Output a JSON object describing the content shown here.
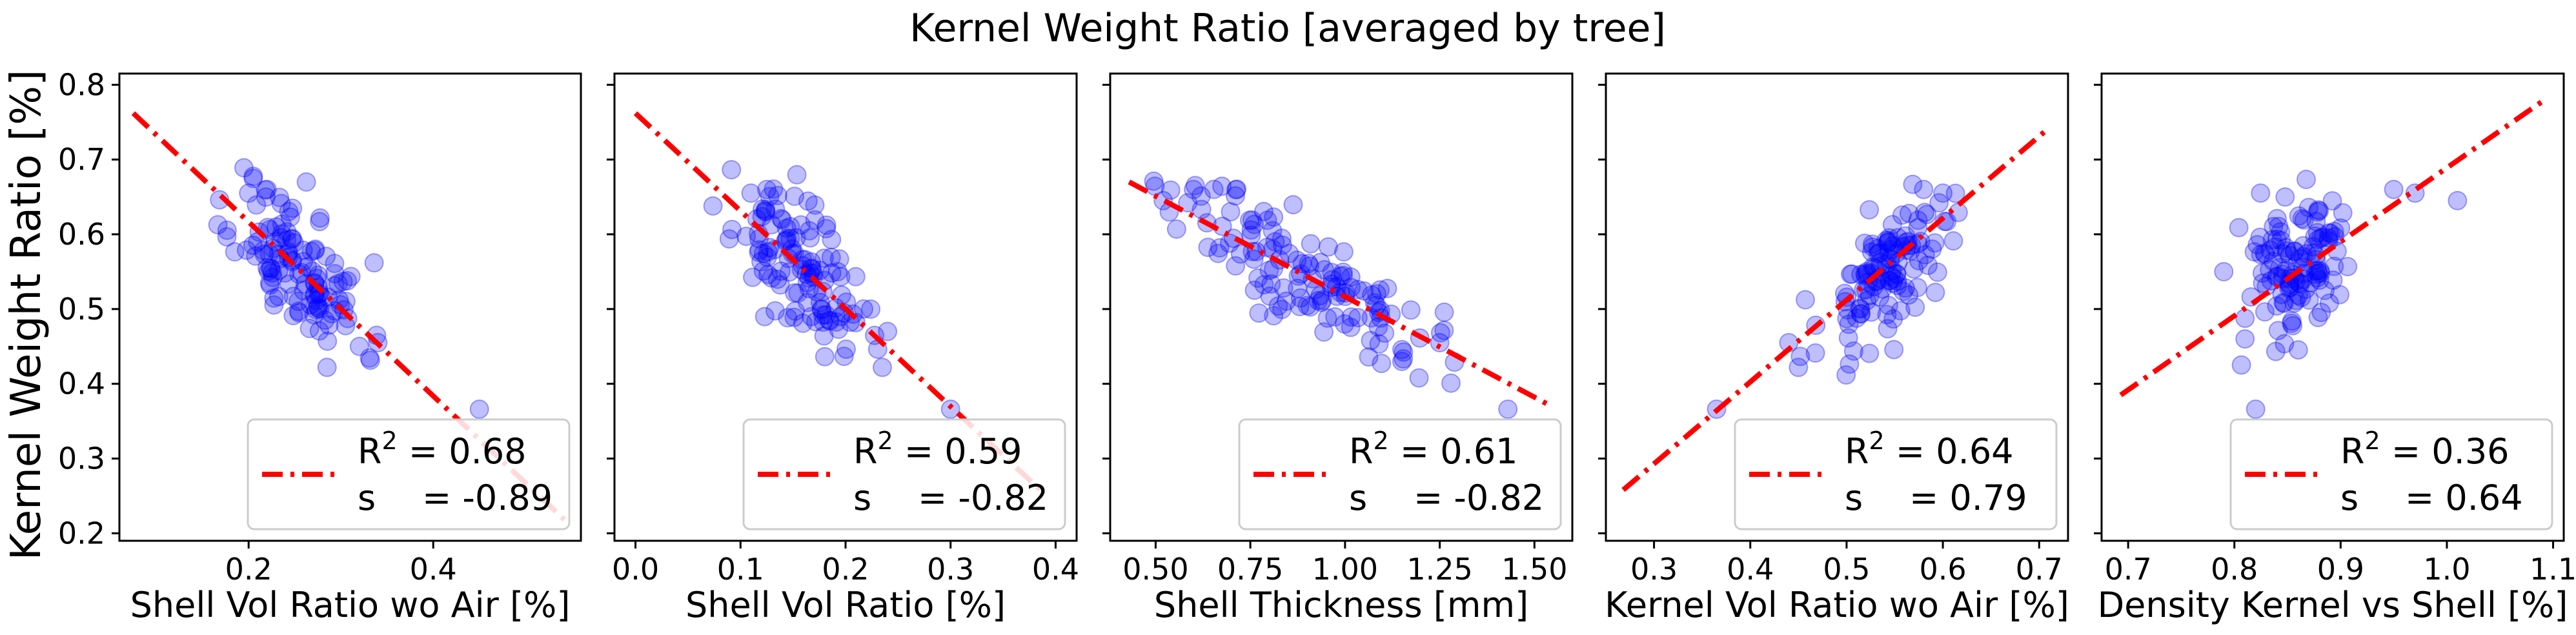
{
  "figure": {
    "title": "Kernel Weight Ratio [averaged by tree]",
    "shared_ylabel": "Kernel Weight Ratio [%]"
  },
  "colors": {
    "points": "#0000ff",
    "fit_line": "#ff0000",
    "axes": "#000000"
  },
  "chart_data": [
    {
      "type": "scatter",
      "xlabel": "Shell Vol Ratio wo Air [%]",
      "ylabel": "Kernel Weight Ratio [%]",
      "xlim": [
        0.06,
        0.56
      ],
      "ylim": [
        0.19,
        0.815
      ],
      "xticks": [
        0.2,
        0.4
      ],
      "xtick_labels": [
        "0.2",
        "0.4"
      ],
      "yticks": [
        0.2,
        0.3,
        0.4,
        0.5,
        0.6,
        0.7,
        0.8
      ],
      "ytick_labels": [
        "0.2",
        "0.3",
        "0.4",
        "0.5",
        "0.6",
        "0.7",
        "0.8"
      ],
      "fit_line": {
        "x": [
          0.075,
          0.545
        ],
        "y": [
          0.762,
          0.215
        ]
      },
      "legend": {
        "location": "lower-right",
        "r2_label": "R",
        "r2_sup": "2",
        "r2_value": "= 0.68",
        "s_label": "s",
        "s_value": "= -0.89"
      },
      "cloud": {
        "center": [
          0.255,
          0.555
        ],
        "spread": [
          0.035,
          0.045
        ],
        "slope": -1.02,
        "n": 120,
        "seed": 11
      },
      "points": [
        [
          0.45,
          0.366
        ],
        [
          0.285,
          0.422
        ],
        [
          0.32,
          0.45
        ],
        [
          0.34,
          0.455
        ],
        [
          0.2,
          0.655
        ],
        [
          0.22,
          0.66
        ]
      ]
    },
    {
      "type": "scatter",
      "xlabel": "Shell Vol Ratio [%]",
      "xlim": [
        -0.02,
        0.42
      ],
      "ylim": [
        0.19,
        0.815
      ],
      "xticks": [
        0.0,
        0.1,
        0.2,
        0.3,
        0.4
      ],
      "xtick_labels": [
        "0.0",
        "0.1",
        "0.2",
        "0.3",
        "0.4"
      ],
      "yticks": [
        0.2,
        0.3,
        0.4,
        0.5,
        0.6,
        0.7,
        0.8
      ],
      "fit_line": {
        "x": [
          0.0,
          0.39
        ],
        "y": [
          0.762,
          0.252
        ]
      },
      "legend": {
        "location": "lower-right",
        "r2_label": "R",
        "r2_sup": "2",
        "r2_value": "= 0.59",
        "s_label": "s",
        "s_value": "= -0.82"
      },
      "cloud": {
        "center": [
          0.155,
          0.555
        ],
        "spread": [
          0.03,
          0.04
        ],
        "slope": -1.15,
        "n": 120,
        "seed": 23
      },
      "points": [
        [
          0.3,
          0.366
        ],
        [
          0.235,
          0.422
        ],
        [
          0.24,
          0.47
        ],
        [
          0.11,
          0.655
        ],
        [
          0.125,
          0.66
        ]
      ]
    },
    {
      "type": "scatter",
      "xlabel": "Shell Thickness [mm]",
      "xlim": [
        0.38,
        1.6
      ],
      "ylim": [
        0.19,
        0.815
      ],
      "xticks": [
        0.5,
        0.75,
        1.0,
        1.25,
        1.5
      ],
      "xtick_labels": [
        "0.50",
        "0.75",
        "1.00",
        "1.25",
        "1.50"
      ],
      "yticks": [
        0.2,
        0.3,
        0.4,
        0.5,
        0.6,
        0.7,
        0.8
      ],
      "fit_line": {
        "x": [
          0.43,
          1.545
        ],
        "y": [
          0.67,
          0.37
        ]
      },
      "legend": {
        "location": "lower-right",
        "r2_label": "R",
        "r2_sup": "2",
        "r2_value": "= 0.61",
        "s_label": "s",
        "s_value": "= -0.82"
      },
      "cloud": {
        "center": [
          0.9,
          0.545
        ],
        "spread": [
          0.17,
          0.035
        ],
        "slope": -0.26,
        "n": 130,
        "seed": 37
      },
      "points": [
        [
          1.43,
          0.366
        ],
        [
          0.52,
          0.645
        ],
        [
          0.6,
          0.66
        ],
        [
          1.25,
          0.455
        ],
        [
          1.15,
          0.43
        ]
      ]
    },
    {
      "type": "scatter",
      "xlabel": "Kernel Vol Ratio wo Air [%]",
      "xlim": [
        0.25,
        0.73
      ],
      "ylim": [
        0.19,
        0.815
      ],
      "xticks": [
        0.3,
        0.4,
        0.5,
        0.6,
        0.7
      ],
      "xtick_labels": [
        "0.3",
        "0.4",
        "0.5",
        "0.6",
        "0.7"
      ],
      "yticks": [
        0.2,
        0.3,
        0.4,
        0.5,
        0.6,
        0.7,
        0.8
      ],
      "fit_line": {
        "x": [
          0.268,
          0.71
        ],
        "y": [
          0.258,
          0.742
        ]
      },
      "legend": {
        "location": "lower-right",
        "r2_label": "R",
        "r2_sup": "2",
        "r2_value": "= 0.64",
        "s_label": "s",
        "s_value": "= 0.79"
      },
      "cloud": {
        "center": [
          0.545,
          0.555
        ],
        "spread": [
          0.035,
          0.04
        ],
        "slope": 1.05,
        "n": 120,
        "seed": 53
      },
      "points": [
        [
          0.365,
          0.366
        ],
        [
          0.44,
          0.455
        ],
        [
          0.45,
          0.422
        ],
        [
          0.6,
          0.655
        ],
        [
          0.58,
          0.66
        ]
      ]
    },
    {
      "type": "scatter",
      "xlabel": "Density Kernel vs Shell [%]",
      "xlim": [
        0.675,
        1.11
      ],
      "ylim": [
        0.19,
        0.815
      ],
      "xticks": [
        0.7,
        0.8,
        0.9,
        1.0,
        1.1
      ],
      "xtick_labels": [
        "0.7",
        "0.8",
        "0.9",
        "1.0",
        "1.1"
      ],
      "yticks": [
        0.2,
        0.3,
        0.4,
        0.5,
        0.6,
        0.7,
        0.8
      ],
      "fit_line": {
        "x": [
          0.693,
          1.09
        ],
        "y": [
          0.385,
          0.778
        ]
      },
      "legend": {
        "location": "lower-right",
        "r2_label": "R",
        "r2_sup": "2",
        "r2_value": "= 0.36",
        "s_label": "s",
        "s_value": "= 0.64"
      },
      "cloud": {
        "center": [
          0.86,
          0.555
        ],
        "spread": [
          0.025,
          0.05
        ],
        "slope": 0.5,
        "n": 120,
        "seed": 71
      },
      "points": [
        [
          0.82,
          0.366
        ],
        [
          0.81,
          0.46
        ],
        [
          0.79,
          0.55
        ],
        [
          0.97,
          0.655
        ],
        [
          1.01,
          0.645
        ],
        [
          0.95,
          0.66
        ]
      ]
    }
  ]
}
